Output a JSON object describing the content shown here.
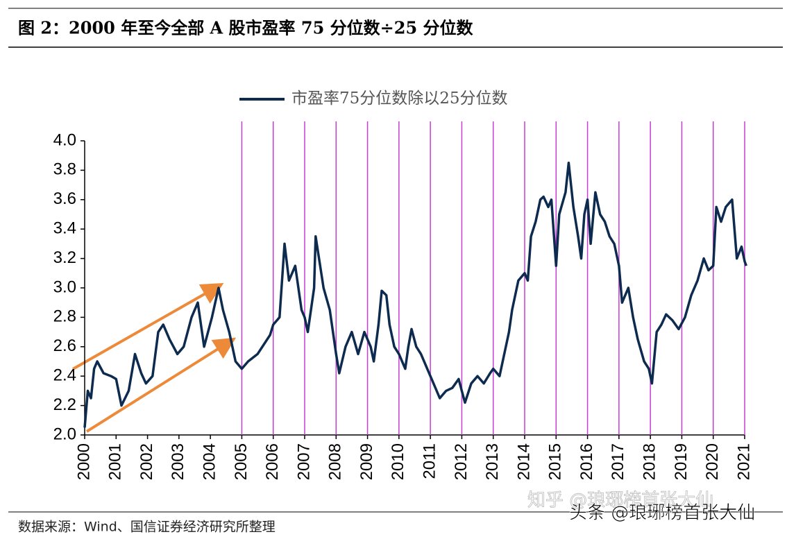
{
  "chart_data": {
    "type": "line",
    "title": "图 2：2000 年至今全部 A 股市盈率 75 分位数÷25 分位数",
    "source": "数据来源：Wind、国信证券经济研究所整理",
    "watermarks": [
      "知乎 @琅琊榜首张大仙",
      "头条 @琅琊榜首张大仙"
    ],
    "x": [
      2000.0,
      2000.1,
      2000.2,
      2000.3,
      2000.4,
      2000.6,
      2000.84,
      2001.0,
      2001.17,
      2001.4,
      2001.6,
      2001.8,
      2001.95,
      2002.16,
      2002.34,
      2002.5,
      2002.7,
      2002.95,
      2003.15,
      2003.4,
      2003.6,
      2003.8,
      2004.05,
      2004.26,
      2004.4,
      2004.6,
      2004.8,
      2005.0,
      2005.2,
      2005.5,
      2005.9,
      2006.0,
      2006.2,
      2006.36,
      2006.5,
      2006.7,
      2006.9,
      2007.0,
      2007.1,
      2007.3,
      2007.35,
      2007.6,
      2007.8,
      2008.0,
      2008.1,
      2008.3,
      2008.5,
      2008.7,
      2008.9,
      2009.1,
      2009.2,
      2009.35,
      2009.45,
      2009.6,
      2009.7,
      2009.85,
      2010.0,
      2010.2,
      2010.3,
      2010.4,
      2010.55,
      2010.7,
      2010.9,
      2011.1,
      2011.3,
      2011.5,
      2011.7,
      2011.9,
      2012.0,
      2012.1,
      2012.3,
      2012.5,
      2012.7,
      2012.9,
      2013.0,
      2013.2,
      2013.35,
      2013.5,
      2013.6,
      2013.8,
      2014.0,
      2014.1,
      2014.2,
      2014.35,
      2014.5,
      2014.6,
      2014.75,
      2014.85,
      2015.0,
      2015.1,
      2015.3,
      2015.4,
      2015.55,
      2015.7,
      2015.8,
      2015.9,
      2016.0,
      2016.1,
      2016.25,
      2016.4,
      2016.55,
      2016.7,
      2016.85,
      2017.0,
      2017.1,
      2017.3,
      2017.45,
      2017.6,
      2017.8,
      2017.95,
      2018.05,
      2018.2,
      2018.35,
      2018.5,
      2018.7,
      2018.9,
      2019.1,
      2019.3,
      2019.5,
      2019.7,
      2019.85,
      2020.0,
      2020.1,
      2020.25,
      2020.4,
      2020.6,
      2020.75,
      2020.9,
      2021.0,
      2021.05
    ],
    "series": [
      {
        "name": "市盈率75分位数除以25分位数",
        "color": "#0d2a4f",
        "values": [
          2.05,
          2.3,
          2.25,
          2.45,
          2.5,
          2.42,
          2.4,
          2.38,
          2.2,
          2.3,
          2.55,
          2.42,
          2.35,
          2.4,
          2.7,
          2.75,
          2.65,
          2.55,
          2.6,
          2.8,
          2.9,
          2.6,
          2.8,
          3.0,
          2.85,
          2.7,
          2.5,
          2.45,
          2.5,
          2.55,
          2.68,
          2.75,
          2.8,
          3.3,
          3.05,
          3.15,
          2.85,
          2.8,
          2.7,
          3.0,
          3.35,
          3.0,
          2.85,
          2.55,
          2.42,
          2.6,
          2.7,
          2.55,
          2.7,
          2.6,
          2.5,
          2.75,
          2.98,
          2.95,
          2.75,
          2.6,
          2.55,
          2.45,
          2.6,
          2.72,
          2.6,
          2.55,
          2.45,
          2.35,
          2.25,
          2.3,
          2.32,
          2.38,
          2.3,
          2.22,
          2.35,
          2.4,
          2.35,
          2.42,
          2.45,
          2.4,
          2.55,
          2.7,
          2.85,
          3.05,
          3.1,
          3.05,
          3.35,
          3.45,
          3.6,
          3.62,
          3.55,
          3.6,
          3.15,
          3.5,
          3.65,
          3.85,
          3.55,
          3.35,
          3.2,
          3.5,
          3.6,
          3.3,
          3.65,
          3.5,
          3.45,
          3.35,
          3.3,
          3.15,
          2.9,
          3.0,
          2.8,
          2.65,
          2.5,
          2.45,
          2.35,
          2.7,
          2.75,
          2.82,
          2.78,
          2.72,
          2.8,
          2.95,
          3.05,
          3.2,
          3.12,
          3.15,
          3.55,
          3.45,
          3.55,
          3.6,
          3.2,
          3.28,
          3.18,
          3.15
        ]
      }
    ],
    "xlim": [
      2000,
      2021
    ],
    "xticks": [
      2000,
      2001,
      2002,
      2003,
      2004,
      2005,
      2006,
      2007,
      2008,
      2009,
      2010,
      2011,
      2012,
      2013,
      2014,
      2015,
      2016,
      2017,
      2018,
      2019,
      2020,
      2021
    ],
    "ylim": [
      2.0,
      4.0
    ],
    "yticks": [
      {
        "value": 2.0,
        "label": "2.0"
      },
      2.2,
      2.4,
      2.6,
      2.8,
      {
        "value": 3.0,
        "label": "3.0"
      },
      3.2,
      3.4,
      3.6,
      3.8,
      {
        "value": 4.0,
        "label": "4.0"
      }
    ],
    "vlines": [
      2005,
      2006,
      2007,
      2008,
      2009,
      2010,
      2011,
      2012,
      2013,
      2014,
      2015,
      2016,
      2017,
      2018,
      2019,
      2020,
      2021
    ],
    "vline_color": "#c83cd6"
  }
}
